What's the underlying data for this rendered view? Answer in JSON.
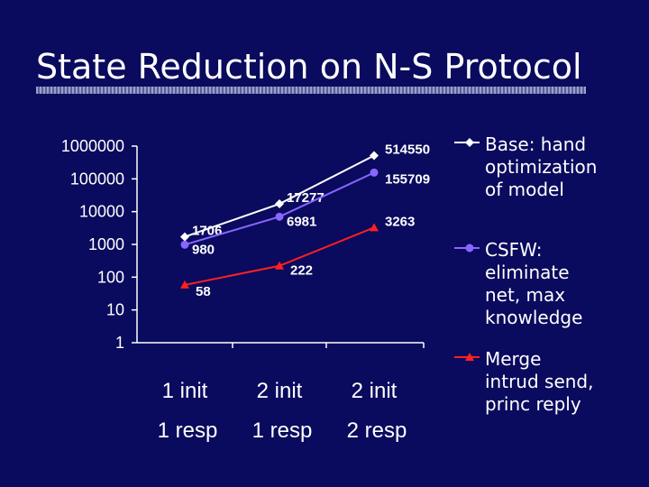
{
  "slide": {
    "title": "State Reduction on N-S Protocol"
  },
  "chart_data": {
    "type": "line",
    "scale": "log",
    "ylim": [
      1,
      1000000
    ],
    "yticks": [
      "1",
      "10",
      "100",
      "1000",
      "10000",
      "100000",
      "1000000"
    ],
    "categories": [
      [
        "1 init",
        "1 resp"
      ],
      [
        "2 init",
        "1 resp"
      ],
      [
        "2 init",
        "2 resp"
      ]
    ],
    "series": [
      {
        "name": "Base: hand optimization of model",
        "marker": "diamond",
        "color": "#ffffff",
        "values": [
          1706,
          17277,
          514550
        ]
      },
      {
        "name": "CSFW: eliminate net, max knowledge",
        "marker": "circle",
        "color": "#8866ff",
        "values": [
          980,
          6981,
          155709
        ]
      },
      {
        "name": "Merge intrud send, princ reply",
        "marker": "triangle",
        "color": "#ff2020",
        "values": [
          58,
          222,
          3263
        ]
      }
    ],
    "legend": "right",
    "grid": false
  },
  "legend": {
    "items": [
      {
        "label": "Base: hand\noptimization\nof model"
      },
      {
        "label": "CSFW:\neliminate\nnet, max\nknowledge"
      },
      {
        "label": "Merge\nintrud send,\nprinc reply"
      }
    ]
  }
}
